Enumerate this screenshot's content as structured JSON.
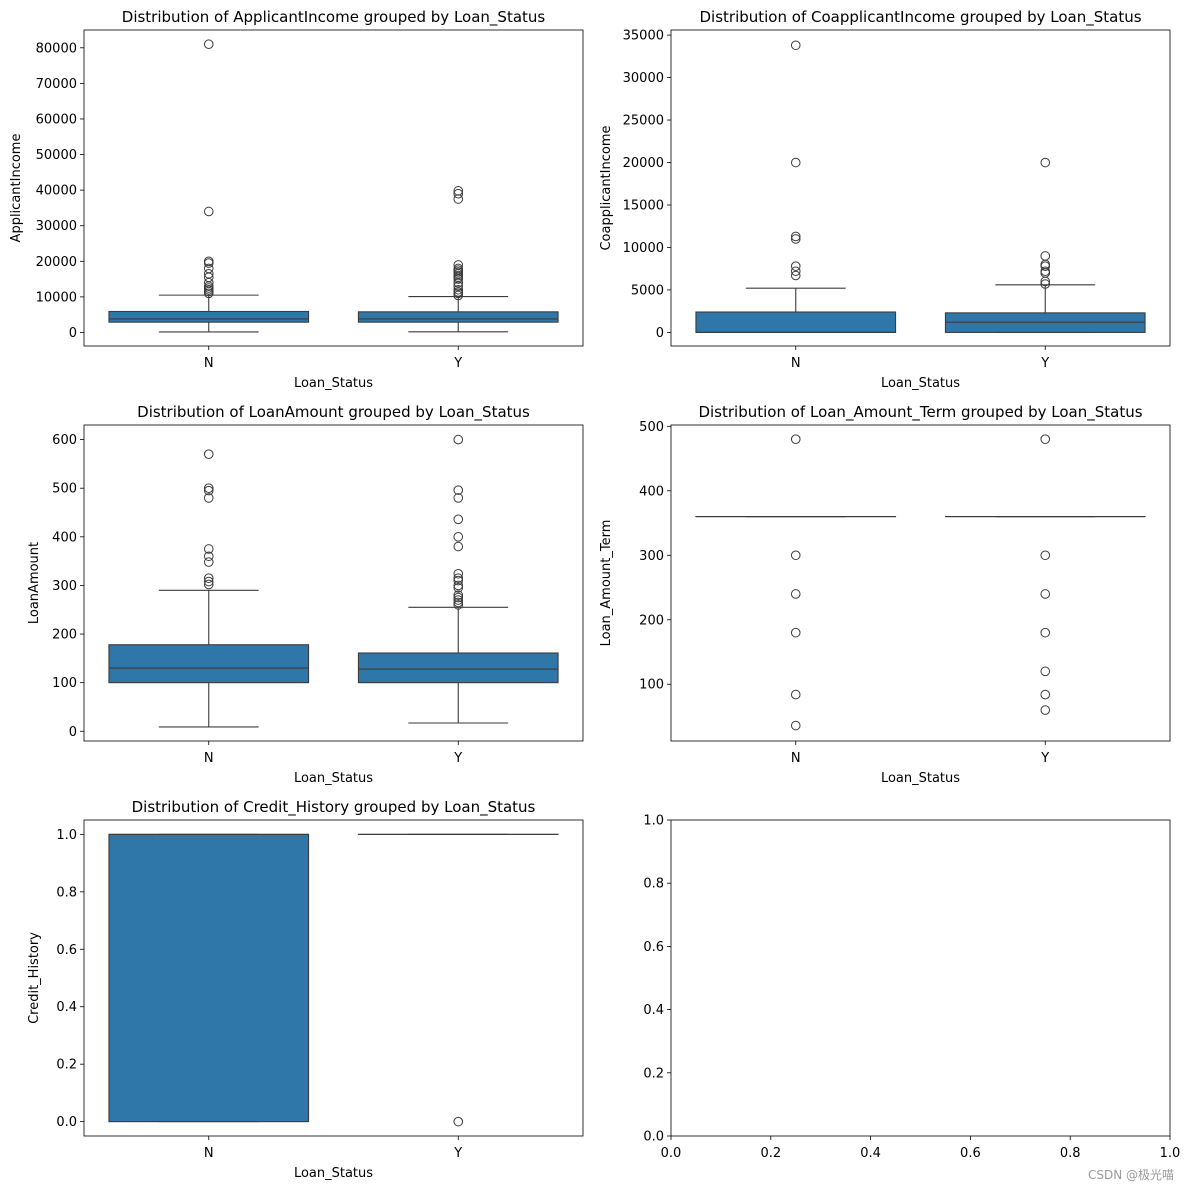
{
  "watermark": "CSDN @极光喵",
  "chart_data": [
    {
      "type": "box",
      "title": "Distribution of ApplicantIncome grouped by Loan_Status",
      "xlabel": "Loan_Status",
      "ylabel": "ApplicantIncome",
      "ylim": [
        -3800,
        85000
      ],
      "yticks": [
        0,
        10000,
        20000,
        30000,
        40000,
        50000,
        60000,
        70000,
        80000
      ],
      "ytick_labels": [
        "0",
        "10000",
        "20000",
        "30000",
        "40000",
        "50000",
        "60000",
        "70000",
        "80000"
      ],
      "categories": [
        "N",
        "Y"
      ],
      "color": "#2e77a8",
      "boxes": [
        {
          "whislo": 150,
          "q1": 2900,
          "med": 3800,
          "q3": 5900,
          "whishi": 10500,
          "fliers": [
            11000,
            11500,
            12000,
            12500,
            13000,
            14000,
            15500,
            16500,
            18000,
            19500,
            20000,
            34000,
            81000
          ]
        },
        {
          "whislo": 200,
          "q1": 2900,
          "med": 3800,
          "q3": 5800,
          "whishi": 10100,
          "fliers": [
            10400,
            11000,
            11400,
            12000,
            13000,
            14000,
            15000,
            15500,
            16000,
            16500,
            17000,
            17500,
            18000,
            19000,
            37500,
            39000,
            39800
          ]
        }
      ]
    },
    {
      "type": "box",
      "title": "Distribution of CoapplicantIncome grouped by Loan_Status",
      "xlabel": "Loan_Status",
      "ylabel": "CoapplicantIncome",
      "ylim": [
        -1600,
        35600
      ],
      "yticks": [
        0,
        5000,
        10000,
        15000,
        20000,
        25000,
        30000,
        35000
      ],
      "ytick_labels": [
        "0",
        "5000",
        "10000",
        "15000",
        "20000",
        "25000",
        "30000",
        "35000"
      ],
      "categories": [
        "N",
        "Y"
      ],
      "color": "#2e77a8",
      "boxes": [
        {
          "whislo": 0,
          "q1": 0,
          "med": 0,
          "q3": 2400,
          "whishi": 5200,
          "fliers": [
            6700,
            7200,
            7800,
            11000,
            11300,
            20000,
            33800
          ]
        },
        {
          "whislo": 0,
          "q1": 0,
          "med": 1200,
          "q3": 2300,
          "whishi": 5600,
          "fliers": [
            5700,
            6000,
            7000,
            7200,
            7800,
            8000,
            9000,
            20000
          ]
        }
      ]
    },
    {
      "type": "box",
      "title": "Distribution of LoanAmount grouped by Loan_Status",
      "xlabel": "Loan_Status",
      "ylabel": "LoanAmount",
      "ylim": [
        -20,
        630
      ],
      "yticks": [
        0,
        100,
        200,
        300,
        400,
        500,
        600
      ],
      "ytick_labels": [
        "0",
        "100",
        "200",
        "300",
        "400",
        "500",
        "600"
      ],
      "categories": [
        "N",
        "Y"
      ],
      "color": "#2e77a8",
      "boxes": [
        {
          "whislo": 9,
          "q1": 100,
          "med": 130,
          "q3": 178,
          "whishi": 290,
          "fliers": [
            302,
            308,
            315,
            348,
            360,
            375,
            480,
            495,
            500,
            570
          ]
        },
        {
          "whislo": 17,
          "q1": 100,
          "med": 128,
          "q3": 161,
          "whishi": 255,
          "fliers": [
            260,
            265,
            270,
            275,
            280,
            295,
            300,
            310,
            315,
            324,
            380,
            400,
            436,
            480,
            496,
            600
          ]
        }
      ]
    },
    {
      "type": "box",
      "title": "Distribution of Loan_Amount_Term grouped by Loan_Status",
      "xlabel": "Loan_Status",
      "ylabel": "Loan_Amount_Term",
      "ylim": [
        12,
        502
      ],
      "yticks": [
        100,
        200,
        300,
        400,
        500
      ],
      "ytick_labels": [
        "100",
        "200",
        "300",
        "400",
        "500"
      ],
      "categories": [
        "N",
        "Y"
      ],
      "color": "#2e77a8",
      "boxes": [
        {
          "whislo": 360,
          "q1": 360,
          "med": 360,
          "q3": 360,
          "whishi": 360,
          "fliers": [
            36,
            84,
            180,
            240,
            300,
            480
          ]
        },
        {
          "whislo": 360,
          "q1": 360,
          "med": 360,
          "q3": 360,
          "whishi": 360,
          "fliers": [
            60,
            84,
            120,
            180,
            240,
            300,
            480
          ]
        }
      ]
    },
    {
      "type": "box",
      "title": "Distribution of Credit_History grouped by Loan_Status",
      "xlabel": "Loan_Status",
      "ylabel": "Credit_History",
      "ylim": [
        -0.05,
        1.05
      ],
      "yticks": [
        0,
        0.2,
        0.4,
        0.6,
        0.8,
        1.0
      ],
      "ytick_labels": [
        "0.0",
        "0.2",
        "0.4",
        "0.6",
        "0.8",
        "1.0"
      ],
      "categories": [
        "N",
        "Y"
      ],
      "color": "#2e77a8",
      "boxes": [
        {
          "whislo": 0,
          "q1": 0,
          "med": 1,
          "q3": 1,
          "whishi": 1,
          "fliers": []
        },
        {
          "whislo": 1,
          "q1": 1,
          "med": 1,
          "q3": 1,
          "whishi": 1,
          "fliers": [
            0
          ]
        }
      ]
    },
    {
      "type": "empty",
      "title": "",
      "xlabel": "",
      "ylabel": "",
      "xlim": [
        0,
        1
      ],
      "ylim": [
        0,
        1
      ],
      "xticks": [
        0,
        0.2,
        0.4,
        0.6,
        0.8,
        1.0
      ],
      "xtick_labels": [
        "0.0",
        "0.2",
        "0.4",
        "0.6",
        "0.8",
        "1.0"
      ],
      "yticks": [
        0,
        0.2,
        0.4,
        0.6,
        0.8,
        1.0
      ],
      "ytick_labels": [
        "0.0",
        "0.2",
        "0.4",
        "0.6",
        "0.8",
        "1.0"
      ]
    }
  ]
}
